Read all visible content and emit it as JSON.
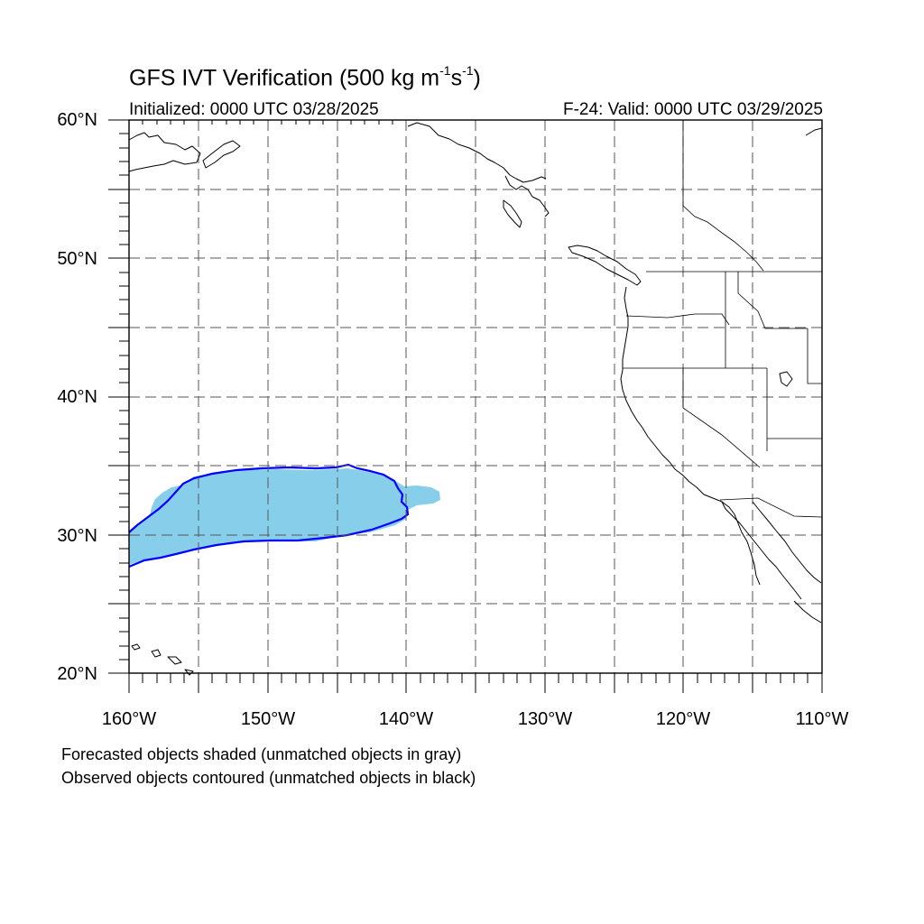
{
  "title": {
    "main": "GFS IVT Verification (500 kg m",
    "exp1": "-1",
    "mid": "s",
    "exp2": "-1",
    "end": ")"
  },
  "init_text": "Initialized: 0000 UTC 03/28/2025",
  "valid_text": "F-24: Valid: 0000 UTC 03/29/2025",
  "lat_labels": [
    "60°N",
    "50°N",
    "40°N",
    "30°N",
    "20°N"
  ],
  "lon_labels": [
    "160°W",
    "150°W",
    "140°W",
    "130°W",
    "120°W",
    "110°W"
  ],
  "legend": {
    "line1": "Forecasted objects shaded (unmatched objects in gray)",
    "line2": "Observed objects contoured (unmatched objects in black)"
  },
  "colors": {
    "forecast_fill": "#87ceeb",
    "observed_contour": "#0000ff",
    "coastline": "#000000",
    "grid": "#555555"
  }
}
